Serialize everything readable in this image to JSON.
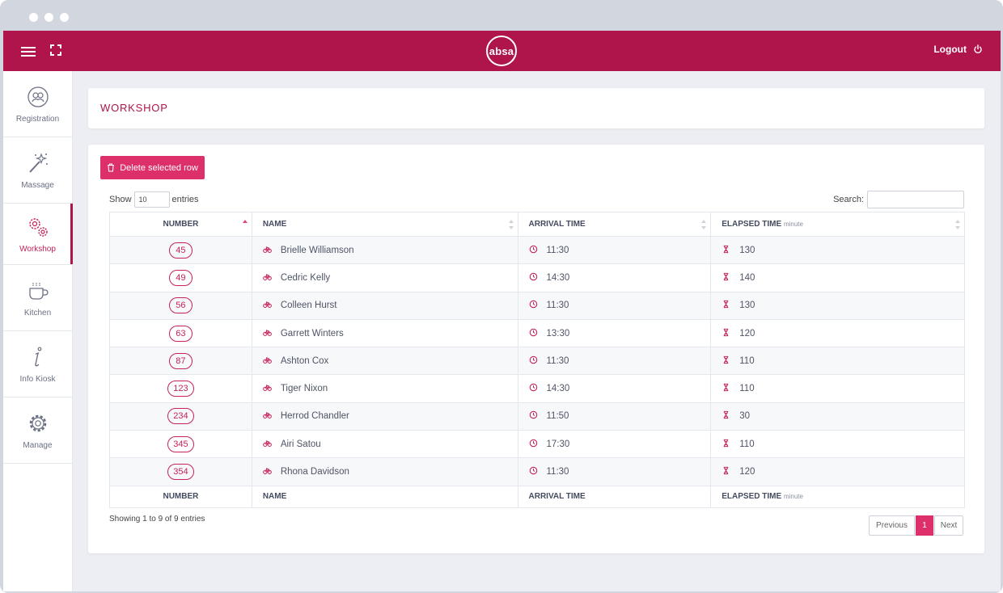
{
  "brand": {
    "logo_text": "absa",
    "primary": "#af144b",
    "accent": "#dd2f69"
  },
  "topbar": {
    "logout_label": "Logout",
    "menu_icon": "hamburger-icon",
    "fullscreen_icon": "fullscreen-icon",
    "power_icon": "power-icon"
  },
  "sidebar": {
    "items": [
      {
        "label": "Registration",
        "icon": "registration-icon"
      },
      {
        "label": "Massage",
        "icon": "magic-wand-icon"
      },
      {
        "label": "Workshop",
        "icon": "gears-icon",
        "active": true
      },
      {
        "label": "Kitchen",
        "icon": "coffee-cup-icon"
      },
      {
        "label": "Info Kiosk",
        "icon": "info-icon"
      },
      {
        "label": "Manage",
        "icon": "gear-icon"
      }
    ]
  },
  "page": {
    "title": "WORKSHOP"
  },
  "toolbar": {
    "delete_label": "Delete selected row"
  },
  "table_controls": {
    "show_label": "Show",
    "page_length": "10",
    "entries_label": "entries",
    "search_label": "Search:",
    "search_value": ""
  },
  "table": {
    "headers": {
      "number": "NUMBER",
      "name": "NAME",
      "arrival": "ARRIVAL TIME",
      "elapsed": "ELAPSED TIME",
      "elapsed_unit": "minute"
    },
    "rows": [
      {
        "number": "45",
        "name": "Brielle Williamson",
        "arrival": "11:30",
        "elapsed": "130"
      },
      {
        "number": "49",
        "name": "Cedric Kelly",
        "arrival": "14:30",
        "elapsed": "140"
      },
      {
        "number": "56",
        "name": "Colleen Hurst",
        "arrival": "11:30",
        "elapsed": "130"
      },
      {
        "number": "63",
        "name": "Garrett Winters",
        "arrival": "13:30",
        "elapsed": "120"
      },
      {
        "number": "87",
        "name": "Ashton Cox",
        "arrival": "11:30",
        "elapsed": "110"
      },
      {
        "number": "123",
        "name": "Tiger Nixon",
        "arrival": "14:30",
        "elapsed": "110"
      },
      {
        "number": "234",
        "name": "Herrod Chandler",
        "arrival": "11:50",
        "elapsed": "30"
      },
      {
        "number": "345",
        "name": "Airi Satou",
        "arrival": "17:30",
        "elapsed": "110"
      },
      {
        "number": "354",
        "name": "Rhona Davidson",
        "arrival": "11:30",
        "elapsed": "120"
      }
    ]
  },
  "footer": {
    "info": "Showing 1 to 9 of 9 entries",
    "previous_label": "Previous",
    "current_page": "1",
    "next_label": "Next"
  }
}
